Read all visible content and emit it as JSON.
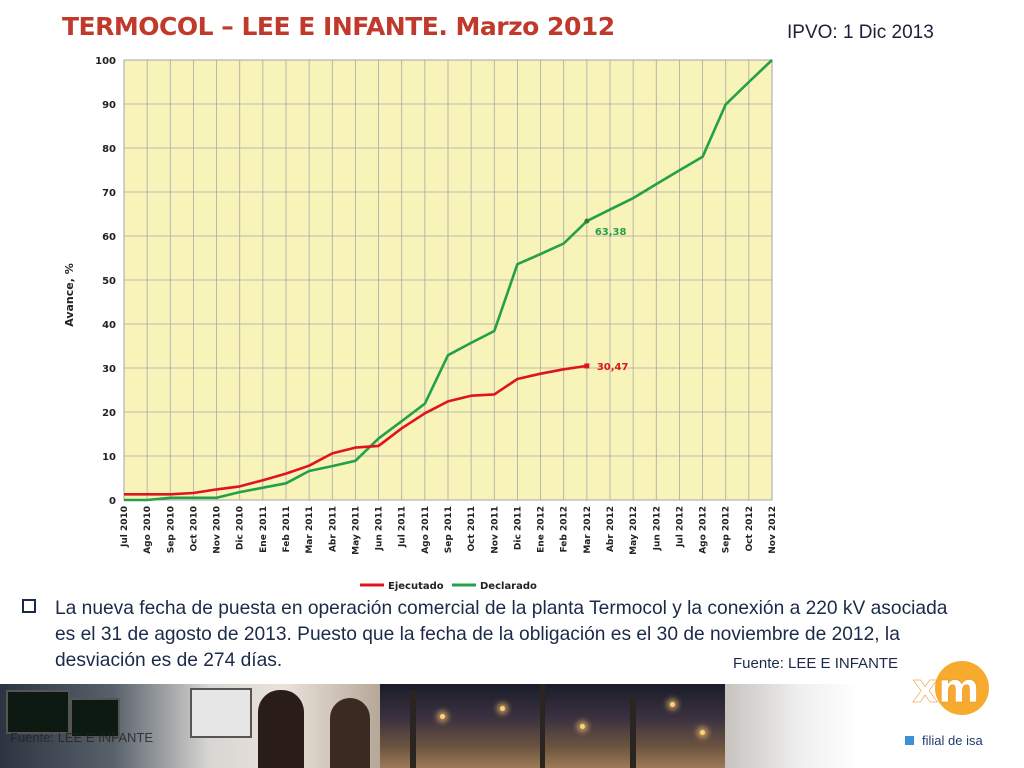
{
  "header": {
    "title": "TERMOCOL – LEE E INFANTE. Marzo 2012",
    "ipvo": "IPVO: 1 Dic 2013"
  },
  "chart_data": {
    "type": "line",
    "title": "",
    "xlabel": "",
    "ylabel": "Avance, %",
    "ylim": [
      0,
      100
    ],
    "yticks": [
      0,
      10,
      20,
      30,
      40,
      50,
      60,
      70,
      80,
      90,
      100
    ],
    "grid": true,
    "legend_position": "bottom",
    "background": "#f7f3b9",
    "categories": [
      "Jul 2010",
      "Ago 2010",
      "Sep 2010",
      "Oct 2010",
      "Nov 2010",
      "Dic 2010",
      "Ene 2011",
      "Feb 2011",
      "Mar 2011",
      "Abr 2011",
      "May 2011",
      "Jun 2011",
      "Jul 2011",
      "Ago 2011",
      "Sep 2011",
      "Oct 2011",
      "Nov 2011",
      "Dic 2011",
      "Ene 2012",
      "Feb 2012",
      "Mar 2012",
      "Abr 2012",
      "May 2012",
      "Jun 2012",
      "Jul 2012",
      "Ago 2012",
      "Sep 2012",
      "Oct 2012",
      "Nov 2012"
    ],
    "series": [
      {
        "name": "Ejecutado",
        "color": "#e0141e",
        "values": [
          1.3,
          1.3,
          1.3,
          1.6,
          2.4,
          3.1,
          4.5,
          6.0,
          7.8,
          10.6,
          11.9,
          12.3,
          16.3,
          19.7,
          22.4,
          23.7,
          24.0,
          27.5,
          28.7,
          29.7,
          30.47,
          null,
          null,
          null,
          null,
          null,
          null,
          null,
          null
        ],
        "end_label": "30,47"
      },
      {
        "name": "Declarado",
        "color": "#23a048",
        "values": [
          0.0,
          0.0,
          0.5,
          0.5,
          0.5,
          1.8,
          2.8,
          3.8,
          6.6,
          7.7,
          8.9,
          14.0,
          17.9,
          21.9,
          32.9,
          35.7,
          38.4,
          53.6,
          55.9,
          58.3,
          63.38,
          66.0,
          68.6,
          71.8,
          74.9,
          78.0,
          89.9,
          95.0,
          100.0
        ],
        "point_label": "63,38"
      }
    ]
  },
  "note": {
    "text": "La nueva fecha de puesta en operación comercial de la planta Termocol y la conexión a 220 kV asociada es el 31 de agosto de 2013. Puesto que la fecha de la obligación es el 30 de noviembre de 2012, la desviación es de 274 días.",
    "source": "Fuente: LEE E INFANTE"
  },
  "footer": {
    "photo_caption": "Fuente: LEE E INFANTE",
    "logo_text": "xm",
    "brand": "filial de isa"
  }
}
